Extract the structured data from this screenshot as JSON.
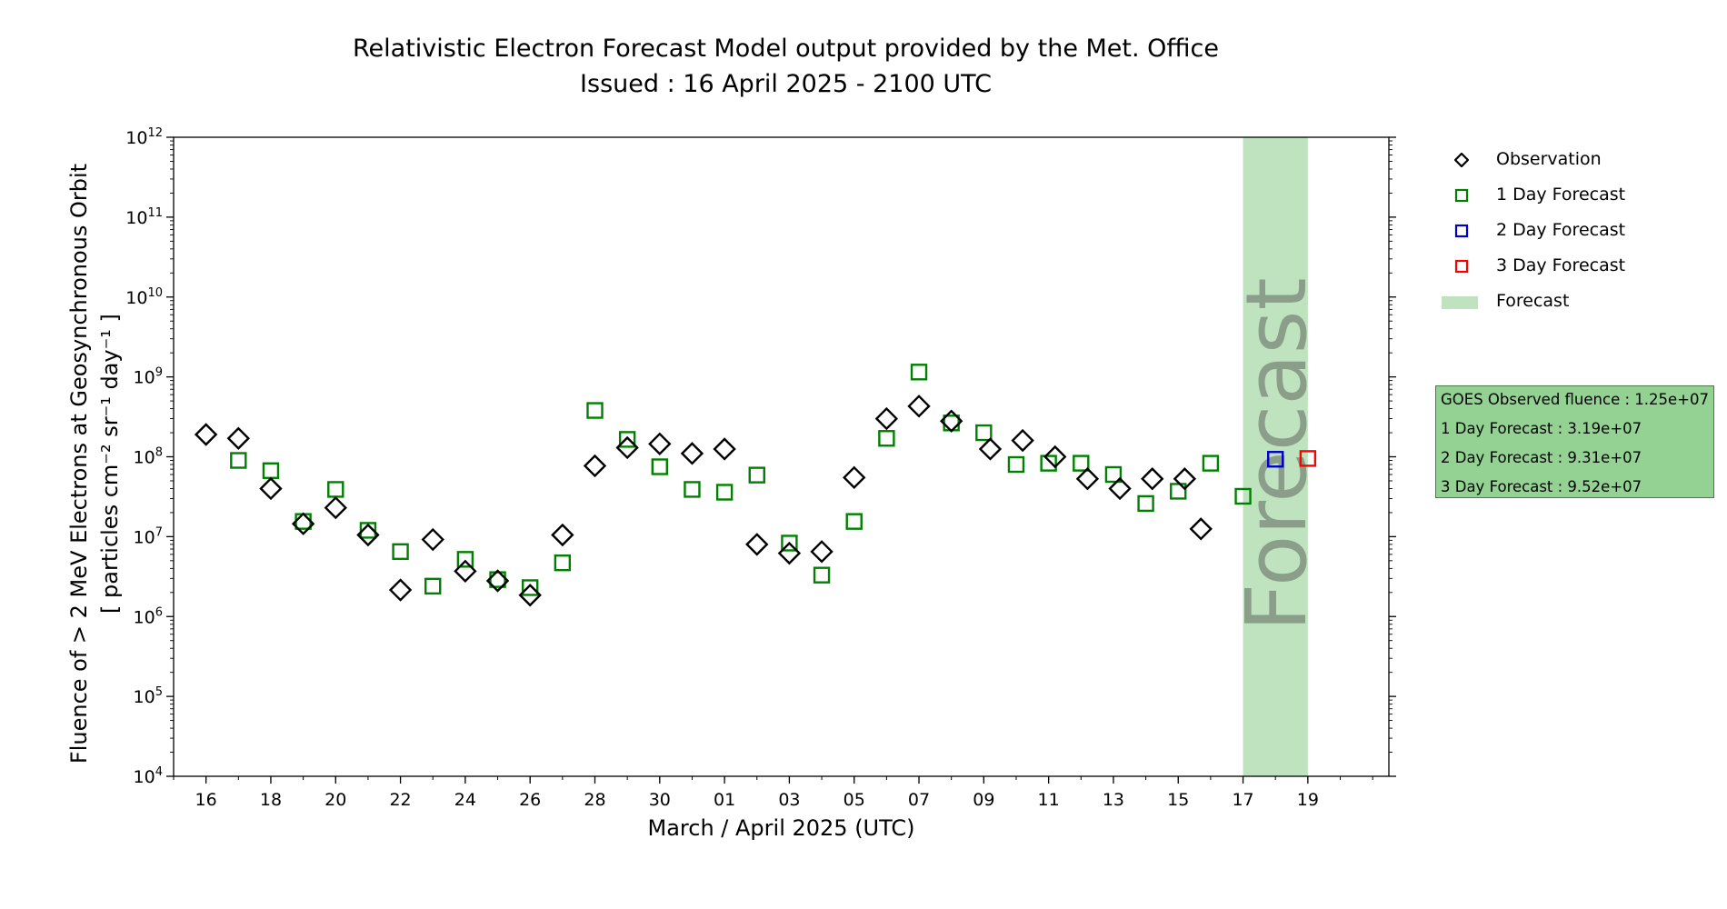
{
  "chart_data": {
    "type": "scatter",
    "title": "Relativistic Electron Forecast Model output provided by the Met. Office",
    "subtitle": "Issued : 16 April 2025 - 2100 UTC",
    "xlabel": "March / April 2025 (UTC)",
    "ylabel_line1": "Fluence of > 2 MeV Electrons at Geosynchronous Orbit",
    "ylabel_line2": "[ particles cm⁻² sr⁻¹ day⁻¹ ]",
    "yscale": "log",
    "ylim": [
      10000,
      1000000000000
    ],
    "y_ticks": [
      {
        "base": "10",
        "exp": "4",
        "value": 10000
      },
      {
        "base": "10",
        "exp": "5",
        "value": 100000
      },
      {
        "base": "10",
        "exp": "6",
        "value": 1000000
      },
      {
        "base": "10",
        "exp": "7",
        "value": 10000000
      },
      {
        "base": "10",
        "exp": "8",
        "value": 100000000
      },
      {
        "base": "10",
        "exp": "9",
        "value": 1000000000
      },
      {
        "base": "10",
        "exp": "10",
        "value": 10000000000
      },
      {
        "base": "10",
        "exp": "11",
        "value": 100000000000
      },
      {
        "base": "10",
        "exp": "12",
        "value": 1000000000000
      }
    ],
    "x_unit": "day index (0 = 15 March 2025)",
    "xlim": [
      0,
      37.5
    ],
    "x_ticks": [
      {
        "label": "16",
        "x": 1
      },
      {
        "label": "18",
        "x": 3
      },
      {
        "label": "20",
        "x": 5
      },
      {
        "label": "22",
        "x": 7
      },
      {
        "label": "24",
        "x": 9
      },
      {
        "label": "26",
        "x": 11
      },
      {
        "label": "28",
        "x": 13
      },
      {
        "label": "30",
        "x": 15
      },
      {
        "label": "01",
        "x": 17
      },
      {
        "label": "03",
        "x": 19
      },
      {
        "label": "05",
        "x": 21
      },
      {
        "label": "07",
        "x": 23
      },
      {
        "label": "09",
        "x": 25
      },
      {
        "label": "11",
        "x": 27
      },
      {
        "label": "13",
        "x": 29
      },
      {
        "label": "15",
        "x": 31
      },
      {
        "label": "17",
        "x": 33
      },
      {
        "label": "19",
        "x": 35
      }
    ],
    "forecast_region": {
      "x_start": 33.0,
      "x_end": 35.0,
      "color": "#bfe3bf",
      "label": "Forecast",
      "label_color": "#8a9e8a"
    },
    "series": [
      {
        "name": "Observation",
        "marker": "diamond",
        "color": "#000000",
        "points": [
          {
            "x": 1.0,
            "y": 190000000.0
          },
          {
            "x": 2.0,
            "y": 170000000.0
          },
          {
            "x": 3.0,
            "y": 40000000.0
          },
          {
            "x": 4.0,
            "y": 14500000.0
          },
          {
            "x": 5.0,
            "y": 23000000.0
          },
          {
            "x": 6.0,
            "y": 10500000.0
          },
          {
            "x": 7.0,
            "y": 2150000.0
          },
          {
            "x": 8.0,
            "y": 9200000.0
          },
          {
            "x": 9.0,
            "y": 3700000.0
          },
          {
            "x": 10.0,
            "y": 2800000.0
          },
          {
            "x": 11.0,
            "y": 1850000.0
          },
          {
            "x": 12.0,
            "y": 10500000.0
          },
          {
            "x": 13.0,
            "y": 77000000.0
          },
          {
            "x": 14.0,
            "y": 130000000.0
          },
          {
            "x": 15.0,
            "y": 145000000.0
          },
          {
            "x": 16.0,
            "y": 110000000.0
          },
          {
            "x": 17.0,
            "y": 125000000.0
          },
          {
            "x": 18.0,
            "y": 8000000.0
          },
          {
            "x": 19.0,
            "y": 6200000.0
          },
          {
            "x": 20.0,
            "y": 6500000.0
          },
          {
            "x": 21.0,
            "y": 55000000.0
          },
          {
            "x": 22.0,
            "y": 300000000.0
          },
          {
            "x": 23.0,
            "y": 430000000.0
          },
          {
            "x": 24.0,
            "y": 280000000.0
          },
          {
            "x": 25.2,
            "y": 125000000.0
          },
          {
            "x": 26.2,
            "y": 160000000.0
          },
          {
            "x": 27.2,
            "y": 100000000.0
          },
          {
            "x": 28.2,
            "y": 53000000.0
          },
          {
            "x": 29.2,
            "y": 40000000.0
          },
          {
            "x": 30.2,
            "y": 53000000.0
          },
          {
            "x": 31.2,
            "y": 53000000.0
          },
          {
            "x": 31.7,
            "y": 12500000.0
          }
        ]
      },
      {
        "name": "1 Day Forecast",
        "marker": "square",
        "color": "#008000",
        "points": [
          {
            "x": 2.0,
            "y": 90000000.0
          },
          {
            "x": 3.0,
            "y": 67000000.0
          },
          {
            "x": 4.0,
            "y": 15500000.0
          },
          {
            "x": 5.0,
            "y": 39000000.0
          },
          {
            "x": 6.0,
            "y": 12000000.0
          },
          {
            "x": 7.0,
            "y": 6500000.0
          },
          {
            "x": 8.0,
            "y": 2400000.0
          },
          {
            "x": 9.0,
            "y": 5200000.0
          },
          {
            "x": 10.0,
            "y": 2900000.0
          },
          {
            "x": 11.0,
            "y": 2300000.0
          },
          {
            "x": 12.0,
            "y": 4700000.0
          },
          {
            "x": 13.0,
            "y": 380000000.0
          },
          {
            "x": 14.0,
            "y": 165000000.0
          },
          {
            "x": 15.0,
            "y": 75000000.0
          },
          {
            "x": 16.0,
            "y": 39000000.0
          },
          {
            "x": 17.0,
            "y": 36000000.0
          },
          {
            "x": 18.0,
            "y": 59000000.0
          },
          {
            "x": 19.0,
            "y": 8300000.0
          },
          {
            "x": 20.0,
            "y": 3300000.0
          },
          {
            "x": 21.0,
            "y": 15500000.0
          },
          {
            "x": 22.0,
            "y": 170000000.0
          },
          {
            "x": 23.0,
            "y": 1150000000.0
          },
          {
            "x": 24.0,
            "y": 265000000.0
          },
          {
            "x": 25.0,
            "y": 200000000.0
          },
          {
            "x": 26.0,
            "y": 80000000.0
          },
          {
            "x": 27.0,
            "y": 83000000.0
          },
          {
            "x": 28.0,
            "y": 83000000.0
          },
          {
            "x": 29.0,
            "y": 60000000.0
          },
          {
            "x": 30.0,
            "y": 26000000.0
          },
          {
            "x": 31.0,
            "y": 37000000.0
          },
          {
            "x": 32.0,
            "y": 83000000.0
          },
          {
            "x": 33.0,
            "y": 32000000.0
          }
        ]
      },
      {
        "name": "2 Day Forecast",
        "marker": "square",
        "color": "#0000cc",
        "points": [
          {
            "x": 34.0,
            "y": 93100000.0
          }
        ]
      },
      {
        "name": "3 Day Forecast",
        "marker": "square",
        "color": "#ff0000",
        "points": [
          {
            "x": 35.0,
            "y": 95200000.0
          }
        ]
      }
    ],
    "legend": {
      "placement": "right-outside",
      "entries": [
        {
          "label": "Observation",
          "marker": "diamond",
          "color": "#000000"
        },
        {
          "label": "1 Day Forecast",
          "marker": "square",
          "color": "#008000"
        },
        {
          "label": "2 Day Forecast",
          "marker": "square",
          "color": "#0000cc"
        },
        {
          "label": "3 Day Forecast",
          "marker": "square",
          "color": "#ff0000"
        },
        {
          "label": "Forecast",
          "marker": "patch",
          "color": "#bfe3bf"
        }
      ]
    },
    "summary_box": {
      "lines": [
        "GOES Observed fluence : 1.25e+07",
        "1 Day Forecast : 3.19e+07",
        "2 Day Forecast : 9.31e+07",
        "3 Day Forecast : 9.52e+07"
      ],
      "background": "#94d294"
    }
  }
}
